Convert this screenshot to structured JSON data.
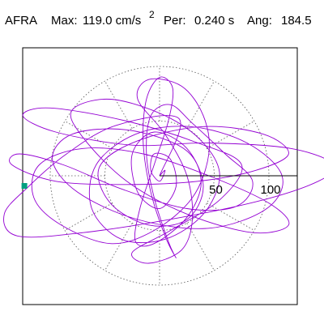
{
  "header": {
    "station": "AFRA",
    "max_label": "Max:",
    "max_value": "119.0 cm/s",
    "max_exponent": "2",
    "period_label": "Per:",
    "period_value": "0.240 s",
    "angle_label": "Ang:",
    "angle_value": "184.5"
  },
  "chart_data": {
    "type": "polar",
    "title": "",
    "radial_ticks": [
      50,
      100
    ],
    "radial_tick_labels": [
      "50",
      "100"
    ],
    "radial_max": 125,
    "grid": "dotted circles and radial spokes every 30 degrees",
    "series": [
      {
        "color": "#9400D3",
        "description_free": true,
        "points": [
          [
            0,
            0
          ],
          [
            18,
            52
          ],
          [
            -40,
            46
          ],
          [
            -85,
            20
          ],
          [
            -120,
            -10
          ],
          [
            -142,
            -35
          ],
          [
            -130,
            -55
          ],
          [
            -70,
            -52
          ],
          [
            20,
            -38
          ],
          [
            95,
            -22
          ],
          [
            145,
            -5
          ],
          [
            160,
            10
          ],
          [
            120,
            25
          ],
          [
            45,
            30
          ],
          [
            -25,
            28
          ],
          [
            -95,
            40
          ],
          [
            -125,
            55
          ],
          [
            -100,
            62
          ],
          [
            -30,
            50
          ],
          [
            35,
            30
          ],
          [
            75,
            10
          ],
          [
            55,
            -22
          ],
          [
            10,
            -50
          ],
          [
            -25,
            -70
          ],
          [
            -10,
            -80
          ],
          [
            20,
            -68
          ],
          [
            30,
            -40
          ],
          [
            25,
            0
          ],
          [
            5,
            38
          ],
          [
            -20,
            70
          ],
          [
            -10,
            88
          ],
          [
            20,
            82
          ],
          [
            40,
            55
          ],
          [
            45,
            20
          ],
          [
            30,
            -20
          ],
          [
            -5,
            -50
          ],
          [
            -45,
            -62
          ],
          [
            -90,
            -45
          ],
          [
            -115,
            -20
          ],
          [
            -110,
            10
          ],
          [
            -70,
            25
          ],
          [
            -15,
            20
          ],
          [
            45,
            0
          ],
          [
            100,
            -25
          ],
          [
            118,
            -45
          ],
          [
            85,
            -52
          ],
          [
            25,
            -35
          ],
          [
            -30,
            -5
          ],
          [
            -70,
            35
          ],
          [
            -80,
            60
          ],
          [
            -45,
            70
          ],
          [
            5,
            55
          ],
          [
            40,
            30
          ],
          [
            55,
            0
          ],
          [
            40,
            -35
          ],
          [
            5,
            -58
          ],
          [
            -35,
            -58
          ],
          [
            -62,
            -30
          ],
          [
            -58,
            10
          ],
          [
            -22,
            38
          ],
          [
            28,
            45
          ],
          [
            80,
            30
          ],
          [
            112,
            0
          ],
          [
            98,
            -30
          ],
          [
            45,
            -48
          ],
          [
            -20,
            -40
          ],
          [
            -75,
            -15
          ],
          [
            -98,
            15
          ],
          [
            -80,
            38
          ],
          [
            -30,
            42
          ],
          [
            22,
            25
          ],
          [
            38,
            -5
          ],
          [
            25,
            -38
          ],
          [
            -5,
            -62
          ],
          [
            -22,
            -60
          ],
          [
            -18,
            -30
          ],
          [
            -5,
            10
          ],
          [
            8,
            50
          ],
          [
            12,
            80
          ],
          [
            0,
            90
          ],
          [
            -12,
            70
          ],
          [
            -15,
            30
          ],
          [
            -8,
            -15
          ],
          [
            5,
            -55
          ],
          [
            15,
            -75
          ],
          [
            8,
            -60
          ],
          [
            -5,
            -20
          ],
          [
            -12,
            20
          ],
          [
            -8,
            55
          ],
          [
            10,
            65
          ],
          [
            30,
            48
          ],
          [
            60,
            20
          ],
          [
            85,
            -5
          ],
          [
            70,
            -28
          ],
          [
            25,
            -30
          ],
          [
            -35,
            -12
          ],
          [
            -88,
            10
          ],
          [
            -128,
            20
          ],
          [
            -135,
            10
          ],
          [
            -95,
            -5
          ],
          [
            -30,
            -8
          ],
          [
            35,
            -5
          ],
          [
            88,
            5
          ],
          [
            118,
            20
          ],
          [
            95,
            38
          ],
          [
            40,
            45
          ],
          [
            -20,
            32
          ],
          [
            -55,
            8
          ],
          [
            -45,
            -25
          ],
          [
            -10,
            -45
          ],
          [
            25,
            -40
          ],
          [
            40,
            -10
          ],
          [
            25,
            25
          ],
          [
            -5,
            40
          ],
          [
            -25,
            20
          ],
          [
            -20,
            -15
          ],
          [
            0,
            -30
          ],
          [
            15,
            -10
          ],
          [
            10,
            15
          ],
          [
            -5,
            20
          ],
          [
            -8,
            5
          ],
          [
            0,
            -5
          ],
          [
            5,
            5
          ],
          [
            0,
            0
          ]
        ]
      }
    ],
    "marker": {
      "shape": "square",
      "color": "#00A080",
      "angle_deg": 180,
      "radius_value": 124
    },
    "reference_axis": {
      "direction": "east",
      "color": "#000000"
    }
  }
}
